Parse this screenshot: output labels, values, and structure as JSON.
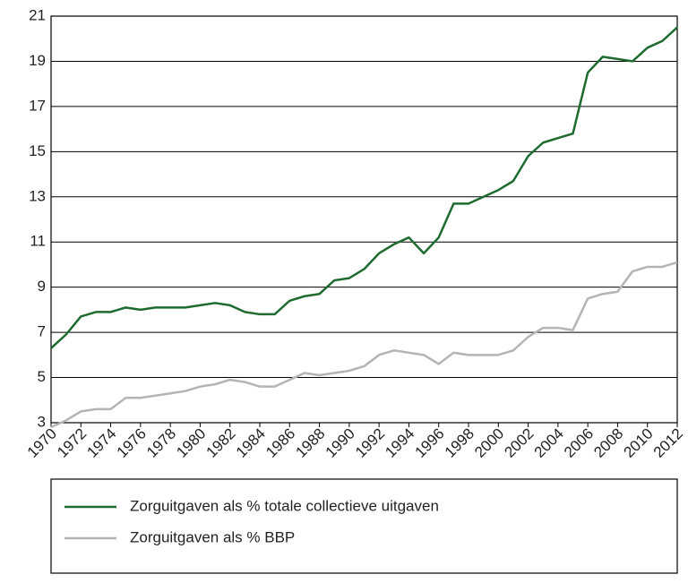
{
  "chart_data": {
    "type": "line",
    "x": [
      1970,
      1971,
      1972,
      1973,
      1974,
      1975,
      1976,
      1977,
      1978,
      1979,
      1980,
      1981,
      1982,
      1983,
      1984,
      1985,
      1986,
      1987,
      1988,
      1989,
      1990,
      1991,
      1992,
      1993,
      1994,
      1995,
      1996,
      1997,
      1998,
      1999,
      2000,
      2001,
      2002,
      2003,
      2004,
      2005,
      2006,
      2007,
      2008,
      2009,
      2010,
      2011,
      2012
    ],
    "series": [
      {
        "name": "Zorguitgaven als % totale collectieve uitgaven",
        "color": "#1e6b2f",
        "values": [
          6.3,
          6.9,
          7.7,
          7.9,
          7.9,
          8.1,
          8.0,
          8.1,
          8.1,
          8.1,
          8.2,
          8.3,
          8.2,
          7.9,
          7.8,
          7.8,
          8.4,
          8.6,
          8.7,
          9.3,
          9.4,
          9.8,
          10.5,
          10.9,
          11.2,
          10.5,
          11.2,
          12.7,
          12.7,
          13.0,
          13.3,
          13.7,
          14.8,
          15.4,
          15.6,
          15.8,
          18.5,
          19.2,
          19.1,
          19.0,
          19.6,
          19.9,
          20.5
        ]
      },
      {
        "name": "Zorguitgaven als % BBP",
        "color": "#b4b4b4",
        "values": [
          2.8,
          3.1,
          3.5,
          3.6,
          3.6,
          4.1,
          4.1,
          4.2,
          4.3,
          4.4,
          4.6,
          4.7,
          4.9,
          4.8,
          4.6,
          4.6,
          4.9,
          5.2,
          5.1,
          5.2,
          5.3,
          5.5,
          6.0,
          6.2,
          6.1,
          6.0,
          5.6,
          6.1,
          6.0,
          6.0,
          6.0,
          6.2,
          6.8,
          7.2,
          7.2,
          7.1,
          8.5,
          8.7,
          8.8,
          9.7,
          9.9,
          9.9,
          10.1
        ]
      }
    ],
    "xlim": [
      1970,
      2012
    ],
    "xticks": [
      1970,
      1972,
      1974,
      1976,
      1978,
      1980,
      1982,
      1984,
      1986,
      1988,
      1990,
      1992,
      1994,
      1996,
      1998,
      2000,
      2002,
      2004,
      2006,
      2008,
      2010,
      2012
    ],
    "ylim": [
      3,
      21
    ],
    "yticks": [
      3,
      5,
      7,
      9,
      11,
      13,
      15,
      17,
      19,
      21
    ],
    "grid": true,
    "legend": "bottom"
  }
}
